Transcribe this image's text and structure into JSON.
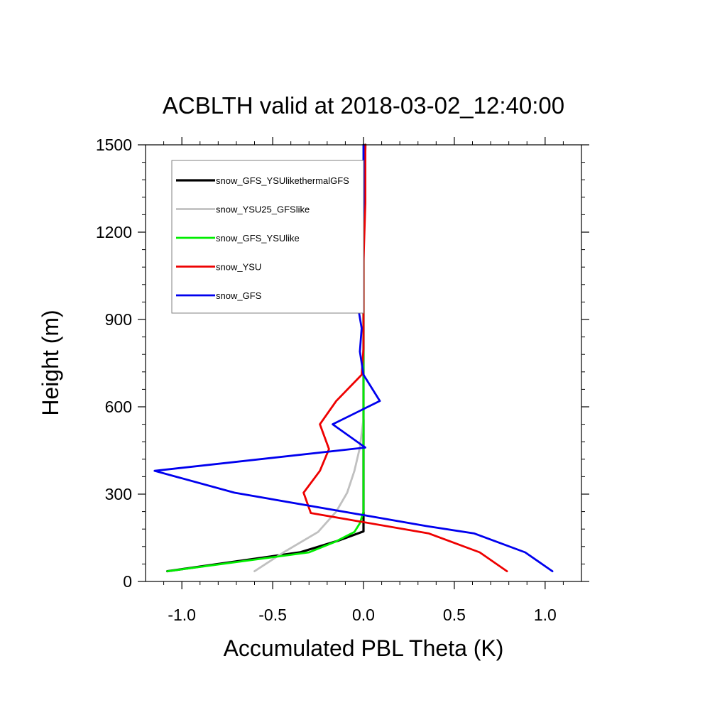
{
  "chart_data": {
    "type": "line",
    "title": "ACBLTH valid at 2018-03-02_12:40:00",
    "xlabel": "Accumulated PBL Theta (K)",
    "ylabel": "Height (m)",
    "xlim": [
      -1.2,
      1.2
    ],
    "ylim": [
      0,
      1500
    ],
    "xticks": [
      -1.0,
      -0.5,
      0.0,
      0.5,
      1.0
    ],
    "xtick_labels": [
      "-1.0",
      "-0.5",
      "0.0",
      "0.5",
      "1.0"
    ],
    "yticks": [
      0,
      300,
      600,
      900,
      1200,
      1500
    ],
    "ytick_labels": [
      "0",
      "300",
      "600",
      "900",
      "1200",
      "1500"
    ],
    "grid": false,
    "legend_position": "top-left",
    "series": [
      {
        "name": "snow_GFS_YSUlikethermalGFS",
        "color": "#000000",
        "points": [
          [
            -1.08,
            35
          ],
          [
            -0.35,
            100
          ],
          [
            -0.14,
            140
          ],
          [
            0.0,
            172
          ],
          [
            0.0,
            400
          ],
          [
            0.0,
            800
          ],
          [
            0.0,
            1200
          ],
          [
            0.01,
            1500
          ]
        ]
      },
      {
        "name": "snow_YSU25_GFSlike",
        "color": "#c0c0c0",
        "points": [
          [
            -0.6,
            35
          ],
          [
            -0.44,
            100
          ],
          [
            -0.25,
            170
          ],
          [
            -0.15,
            240
          ],
          [
            -0.09,
            305
          ],
          [
            -0.05,
            380
          ],
          [
            -0.02,
            460
          ],
          [
            0.0,
            560
          ],
          [
            0.0,
            800
          ],
          [
            0.0,
            1200
          ],
          [
            0.0,
            1500
          ]
        ]
      },
      {
        "name": "snow_GFS_YSUlike",
        "color": "#00ee00",
        "points": [
          [
            -1.08,
            35
          ],
          [
            -0.3,
            100
          ],
          [
            -0.16,
            135
          ],
          [
            -0.05,
            170
          ],
          [
            -0.02,
            200
          ],
          [
            0.0,
            240
          ],
          [
            0.0,
            400
          ],
          [
            0.0,
            800
          ],
          [
            0.0,
            1200
          ],
          [
            0.0,
            1500
          ]
        ]
      },
      {
        "name": "snow_YSU",
        "color": "#ee0000",
        "points": [
          [
            0.79,
            35
          ],
          [
            0.64,
            100
          ],
          [
            0.36,
            165
          ],
          [
            -0.29,
            235
          ],
          [
            -0.33,
            305
          ],
          [
            -0.24,
            380
          ],
          [
            -0.19,
            455
          ],
          [
            -0.24,
            540
          ],
          [
            -0.15,
            620
          ],
          [
            -0.01,
            710
          ],
          [
            0.0,
            800
          ],
          [
            0.0,
            900
          ],
          [
            0.0,
            1100
          ],
          [
            0.01,
            1300
          ],
          [
            0.01,
            1500
          ]
        ]
      },
      {
        "name": "snow_GFS",
        "color": "#0000ee",
        "points": [
          [
            1.04,
            35
          ],
          [
            0.89,
            100
          ],
          [
            0.61,
            165
          ],
          [
            0.35,
            190
          ],
          [
            -0.71,
            305
          ],
          [
            -1.15,
            380
          ],
          [
            0.01,
            460
          ],
          [
            -0.17,
            540
          ],
          [
            0.09,
            620
          ],
          [
            0.0,
            710
          ],
          [
            -0.02,
            790
          ],
          [
            -0.01,
            870
          ],
          [
            -0.04,
            980
          ],
          [
            -0.01,
            1100
          ],
          [
            0.0,
            1300
          ],
          [
            0.0,
            1500
          ]
        ]
      }
    ]
  }
}
